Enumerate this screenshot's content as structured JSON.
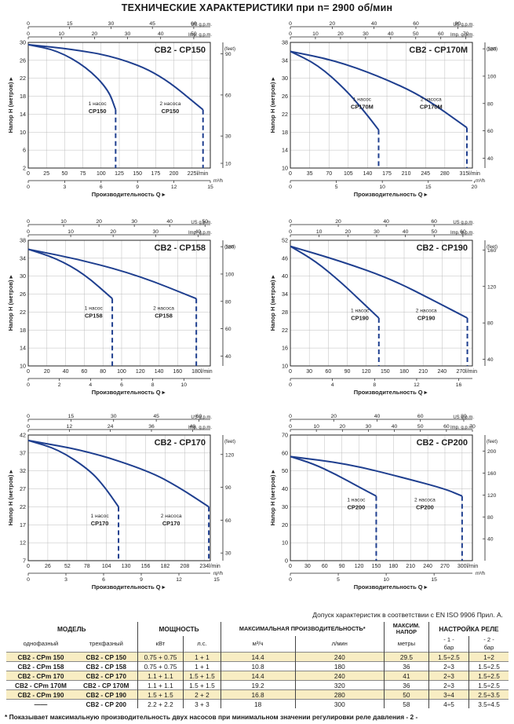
{
  "page": {
    "title": "ТЕХНИЧЕСКИЕ ХАРАКТЕРИСТИКИ при n= 2900 об/мин",
    "tolerance_note": "Допуск характеристик в соответствии с EN ISO 9906 Прил.  A.",
    "footnote": "* Показывает максимальную производительность двух насосов при минимальном значении регулировки реле давления - 2 -"
  },
  "chart_data": [
    {
      "type": "line",
      "title": "CB2 - CP150",
      "ylabel": "Напор Н  (метров)",
      "xlabel": "Производительность Q",
      "ylim": [
        2,
        30
      ],
      "yticks": [
        2,
        6,
        10,
        14,
        18,
        22,
        26,
        30
      ],
      "xlim": [
        0,
        250
      ],
      "xticks": [
        0,
        25,
        50,
        75,
        100,
        125,
        150,
        175,
        200,
        225
      ],
      "xunit": "l/min",
      "m3h_ticks": [
        0,
        3,
        6,
        9,
        12,
        15
      ],
      "m3h_max": 15,
      "m3h_unit": "m³/h",
      "usgpm_ticks": [
        0,
        15,
        30,
        45,
        60
      ],
      "usgpm_max": 66,
      "usgpm_unit": "US g.p.m.",
      "impgpm_ticks": [
        0,
        10,
        20,
        30,
        40,
        50
      ],
      "impgpm_max": 55,
      "impgpm_unit": "Imp. g.p.m.",
      "feet_ticks": [
        10,
        30,
        60,
        90
      ],
      "feet_unit": "(feet)",
      "series": [
        {
          "name": "CP150",
          "label": "1 насос",
          "values": [
            [
              0,
              29.5
            ],
            [
              40,
              28.2
            ],
            [
              80,
              24.5
            ],
            [
              110,
              19.5
            ],
            [
              120,
              15
            ]
          ],
          "cutoff": 120,
          "label_x": 95,
          "label_y": 16
        },
        {
          "name": "CP150",
          "label": "2 насоса",
          "values": [
            [
              0,
              29.5
            ],
            [
              60,
              28.5
            ],
            [
              120,
              26.8
            ],
            [
              180,
              23
            ],
            [
              240,
              15
            ]
          ],
          "cutoff": 240,
          "label_x": 195,
          "label_y": 16
        }
      ]
    },
    {
      "type": "line",
      "title": "CB2 - CP170M",
      "ylabel": "Напор Н  (метров)",
      "xlabel": "Производительность Q",
      "ylim": [
        10,
        38
      ],
      "yticks": [
        10,
        14,
        18,
        22,
        26,
        30,
        34,
        38
      ],
      "xlim": [
        0,
        330
      ],
      "xticks": [
        0,
        35,
        70,
        105,
        140,
        175,
        210,
        245,
        280,
        315
      ],
      "xunit": "l/min",
      "m3h_ticks": [
        0,
        5,
        10,
        15,
        20
      ],
      "m3h_max": 19.8,
      "m3h_unit": "m³/h",
      "usgpm_ticks": [
        0,
        20,
        40,
        60,
        80
      ],
      "usgpm_max": 87,
      "usgpm_unit": "US g.p.m.",
      "impgpm_ticks": [
        0,
        10,
        20,
        30,
        40,
        50,
        60,
        70
      ],
      "impgpm_max": 72.6,
      "impgpm_unit": "Imp. g.p.m.",
      "feet_ticks": [
        40,
        60,
        80,
        100,
        120
      ],
      "feet_unit": "(feet)",
      "series": [
        {
          "name": "CP170M",
          "label": "1 насос",
          "values": [
            [
              0,
              36
            ],
            [
              50,
              33
            ],
            [
              100,
              27.5
            ],
            [
              135,
              22.5
            ],
            [
              160,
              18.5
            ]
          ],
          "cutoff": 160,
          "label_x": 130,
          "label_y": 25
        },
        {
          "name": "CP170M",
          "label": "2 насоса",
          "values": [
            [
              0,
              36
            ],
            [
              80,
              34
            ],
            [
              160,
              30.5
            ],
            [
              240,
              26
            ],
            [
              320,
              19
            ]
          ],
          "cutoff": 320,
          "label_x": 255,
          "label_y": 25
        }
      ]
    },
    {
      "type": "line",
      "title": "CB2 - CP158",
      "ylabel": "Напор Н  (метров)",
      "xlabel": "Производительность Q",
      "ylim": [
        10,
        38
      ],
      "yticks": [
        10,
        14,
        18,
        22,
        26,
        30,
        34,
        38
      ],
      "xlim": [
        0,
        195
      ],
      "xticks": [
        0,
        20,
        40,
        60,
        80,
        100,
        120,
        140,
        160,
        180
      ],
      "xunit": "l/min",
      "m3h_ticks": [
        0,
        2,
        4,
        6,
        8,
        10
      ],
      "m3h_max": 11.7,
      "m3h_unit": "",
      "usgpm_ticks": [
        0,
        10,
        20,
        30,
        40,
        50
      ],
      "usgpm_max": 51.5,
      "usgpm_unit": "US g.p.m.",
      "impgpm_ticks": [
        0,
        10,
        20,
        30,
        40
      ],
      "impgpm_max": 42.9,
      "impgpm_unit": "Imp. g.p.m.",
      "feet_ticks": [
        40,
        60,
        80,
        100,
        120
      ],
      "feet_unit": "(feet)",
      "series": [
        {
          "name": "CP158",
          "label": "1 насос",
          "values": [
            [
              0,
              36
            ],
            [
              30,
              34
            ],
            [
              60,
              30.5
            ],
            [
              90,
              25
            ]
          ],
          "cutoff": 90,
          "label_x": 70,
          "label_y": 22.5
        },
        {
          "name": "CP158",
          "label": "2 насоса",
          "values": [
            [
              0,
              36
            ],
            [
              60,
              33.5
            ],
            [
              120,
              30
            ],
            [
              180,
              25
            ]
          ],
          "cutoff": 180,
          "label_x": 145,
          "label_y": 22.5
        }
      ]
    },
    {
      "type": "line",
      "title": "CB2 - CP190",
      "ylabel": "Напор Н  (метров)",
      "xlabel": "Производительность Q",
      "ylim": [
        10,
        52
      ],
      "yticks": [
        10,
        16,
        22,
        28,
        34,
        40,
        46,
        52
      ],
      "xlim": [
        0,
        288
      ],
      "xticks": [
        0,
        30,
        60,
        90,
        120,
        150,
        180,
        210,
        240,
        270
      ],
      "xunit": "l/min",
      "m3h_ticks": [
        0,
        4,
        8,
        12,
        16
      ],
      "m3h_max": 17.3,
      "m3h_unit": "",
      "usgpm_ticks": [
        0,
        20,
        40,
        60
      ],
      "usgpm_max": 76,
      "usgpm_unit": "US g.p.m.",
      "impgpm_ticks": [
        0,
        10,
        20,
        30,
        40,
        50,
        60
      ],
      "impgpm_max": 63.3,
      "impgpm_unit": "Imp. g.p.m.",
      "feet_ticks": [
        40,
        80,
        120,
        160
      ],
      "feet_unit": "(feet)",
      "series": [
        {
          "name": "CP190",
          "label": "1 насос",
          "values": [
            [
              0,
              50
            ],
            [
              40,
              45
            ],
            [
              80,
              38
            ],
            [
              115,
              31
            ],
            [
              140,
              26
            ]
          ],
          "cutoff": 140,
          "label_x": 110,
          "label_y": 28
        },
        {
          "name": "CP190",
          "label": "2 насоса",
          "values": [
            [
              0,
              50
            ],
            [
              80,
              45
            ],
            [
              160,
              39
            ],
            [
              230,
              31.5
            ],
            [
              280,
              26
            ]
          ],
          "cutoff": 280,
          "label_x": 215,
          "label_y": 28
        }
      ]
    },
    {
      "type": "line",
      "title": "CB2 - CP170",
      "ylabel": "Напор Н  (метров)",
      "xlabel": "Производительность Q",
      "ylim": [
        7,
        42
      ],
      "yticks": [
        7,
        12,
        17,
        22,
        27,
        32,
        37,
        42
      ],
      "xlim": [
        0,
        242
      ],
      "xticks": [
        0,
        26,
        52,
        78,
        104,
        130,
        156,
        182,
        208,
        234
      ],
      "xunit": "l/min",
      "m3h_ticks": [
        0,
        3,
        6,
        9,
        12,
        15
      ],
      "m3h_max": 14.5,
      "m3h_unit": "m³/h",
      "usgpm_ticks": [
        0,
        15,
        30,
        45,
        60
      ],
      "usgpm_max": 64,
      "usgpm_unit": "US g.p.m.",
      "impgpm_ticks": [
        0,
        12,
        24,
        36,
        48
      ],
      "impgpm_max": 53.2,
      "impgpm_unit": "Imp. g.p.m.",
      "feet_ticks": [
        30,
        60,
        90,
        120
      ],
      "feet_unit": "(feet)",
      "series": [
        {
          "name": "CP170",
          "label": "1 насос",
          "values": [
            [
              0,
              40.5
            ],
            [
              40,
              38
            ],
            [
              80,
              32.5
            ],
            [
              100,
              28
            ],
            [
              120,
              22
            ]
          ],
          "cutoff": 120,
          "label_x": 95,
          "label_y": 19
        },
        {
          "name": "CP170",
          "label": "2 насоса",
          "values": [
            [
              0,
              40.5
            ],
            [
              80,
              37.5
            ],
            [
              160,
              32
            ],
            [
              200,
              27.5
            ],
            [
              240,
              22
            ]
          ],
          "cutoff": 240,
          "label_x": 190,
          "label_y": 19
        }
      ]
    },
    {
      "type": "line",
      "title": "CB2 - CP200",
      "ylabel": "Напор Н  (метров)",
      "xlabel": "Производительность Q",
      "ylim": [
        0,
        70
      ],
      "yticks": [
        0,
        10,
        20,
        30,
        40,
        50,
        60,
        70
      ],
      "xlim": [
        0,
        318
      ],
      "xticks": [
        0,
        30,
        60,
        90,
        120,
        150,
        180,
        210,
        240,
        270,
        300
      ],
      "xunit": "l/min",
      "m3h_ticks": [
        0,
        5,
        10,
        15
      ],
      "m3h_max": 19,
      "m3h_unit": "m³/h",
      "usgpm_ticks": [
        0,
        20,
        40,
        60,
        80
      ],
      "usgpm_max": 84,
      "usgpm_unit": "US g.p.m.",
      "impgpm_ticks": [
        0,
        10,
        20,
        30,
        40,
        50,
        60,
        70
      ],
      "impgpm_max": 70,
      "impgpm_unit": "Imp. g.p.m.",
      "feet_ticks": [
        40,
        80,
        120,
        160,
        200
      ],
      "feet_unit": "(feet)",
      "series": [
        {
          "name": "CP200",
          "label": "1 насос",
          "values": [
            [
              0,
              58
            ],
            [
              40,
              54
            ],
            [
              80,
              48
            ],
            [
              120,
              41
            ],
            [
              150,
              36
            ]
          ],
          "cutoff": 150,
          "label_x": 115,
          "label_y": 33
        },
        {
          "name": "CP200",
          "label": "2 насоса",
          "values": [
            [
              0,
              58
            ],
            [
              100,
              54
            ],
            [
              200,
              46
            ],
            [
              270,
              40
            ],
            [
              300,
              36
            ]
          ],
          "cutoff": 300,
          "label_x": 235,
          "label_y": 33
        }
      ]
    }
  ],
  "table": {
    "h_model": "МОДЕЛЬ",
    "h_single": "однофазный",
    "h_three": "трехфазный",
    "h_power": "МОЩНОСТЬ",
    "h_kw": "кВт",
    "h_hp": "л.с.",
    "h_flow": "МАКСИМАЛЬНАЯ ПРОИЗВОДИТЕЛЬНОСТЬ*",
    "h_m3": "м³/ч",
    "h_lmin": "л/мин",
    "h_head": "МАКСИМ. НАПОР",
    "h_meters": "метры",
    "h_relay": "НАСТРОЙКА РЕЛЕ",
    "h_r1": "- 1 -",
    "h_r2": "- 2 -",
    "h_bar1": "бар",
    "h_bar2": "бар",
    "rows": [
      {
        "single": "CB2 - CPm 150",
        "three": "CB2 - CP 150",
        "kw": "0.75 + 0.75",
        "hp": "1 + 1",
        "m3": "14.4",
        "lmin": "240",
        "head": "29.5",
        "r1": "1.5÷2.5",
        "r2": "1÷2",
        "hl": true
      },
      {
        "single": "CB2 - CPm 158",
        "three": "CB2 - CP 158",
        "kw": "0.75 + 0.75",
        "hp": "1 + 1",
        "m3": "10.8",
        "lmin": "180",
        "head": "36",
        "r1": "2÷3",
        "r2": "1.5÷2.5",
        "hl": false
      },
      {
        "single": "CB2 - CPm 170",
        "three": "CB2 - CP 170",
        "kw": "1.1 + 1.1",
        "hp": "1.5 + 1.5",
        "m3": "14.4",
        "lmin": "240",
        "head": "41",
        "r1": "2÷3",
        "r2": "1.5÷2.5",
        "hl": true
      },
      {
        "single": "CB2 - CPm 170M",
        "three": "CB2 - CP 170M",
        "kw": "1.1 + 1.1",
        "hp": "1.5 + 1.5",
        "m3": "19.2",
        "lmin": "320",
        "head": "36",
        "r1": "2÷3",
        "r2": "1.5÷2.5",
        "hl": false
      },
      {
        "single": "CB2 - CPm 190",
        "three": "CB2 - CP 190",
        "kw": "1.5 + 1.5",
        "hp": "2 + 2",
        "m3": "16.8",
        "lmin": "280",
        "head": "50",
        "r1": "3÷4",
        "r2": "2.5÷3.5",
        "hl": true
      },
      {
        "single": "——",
        "three": "CB2 - CP 200",
        "kw": "2.2 + 2.2",
        "hp": "3 + 3",
        "m3": "18",
        "lmin": "300",
        "head": "58",
        "r1": "4÷5",
        "r2": "3.5÷4.5",
        "hl": false
      }
    ]
  },
  "colors": {
    "curve": "#1f3f8f",
    "axis": "#222222",
    "grid": "#bdbdbd",
    "highlight": "#f8edc3"
  }
}
